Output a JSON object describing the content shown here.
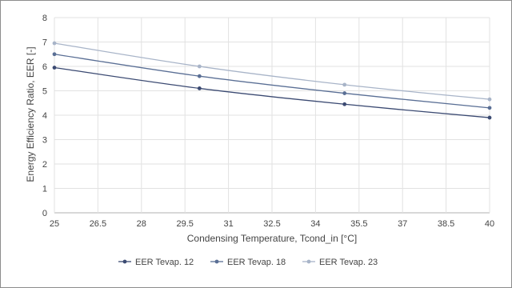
{
  "chart_data": {
    "type": "line",
    "xlabel": "Condensing Temperature, Tcond_in [°C]",
    "ylabel": "Energy Efficiency Ratio, EER [-]",
    "xlim": [
      25,
      40
    ],
    "ylim": [
      0,
      8
    ],
    "xticks": [
      "25",
      "26.5",
      "28",
      "29.5",
      "31",
      "32.5",
      "34",
      "35.5",
      "37",
      "38.5",
      "40"
    ],
    "xtick_values": [
      25,
      26.5,
      28,
      29.5,
      31,
      32.5,
      34,
      35.5,
      37,
      38.5,
      40
    ],
    "yticks": [
      "0",
      "1",
      "2",
      "3",
      "4",
      "5",
      "6",
      "7",
      "8"
    ],
    "ytick_values": [
      0,
      1,
      2,
      3,
      4,
      5,
      6,
      7,
      8
    ],
    "grid": true,
    "legend_position": "bottom",
    "series": [
      {
        "name": "EER Tevap. 12",
        "color": "#3b4a72",
        "x": [
          25,
          30,
          35,
          40
        ],
        "y": [
          5.95,
          5.1,
          4.45,
          3.9
        ]
      },
      {
        "name": "EER Tevap. 18",
        "color": "#5a6f95",
        "x": [
          25,
          30,
          35,
          40
        ],
        "y": [
          6.5,
          5.6,
          4.9,
          4.3
        ]
      },
      {
        "name": "EER Tevap. 23",
        "color": "#a8b4c8",
        "x": [
          25,
          30,
          35,
          40
        ],
        "y": [
          6.95,
          6.0,
          5.25,
          4.65
        ]
      }
    ]
  }
}
